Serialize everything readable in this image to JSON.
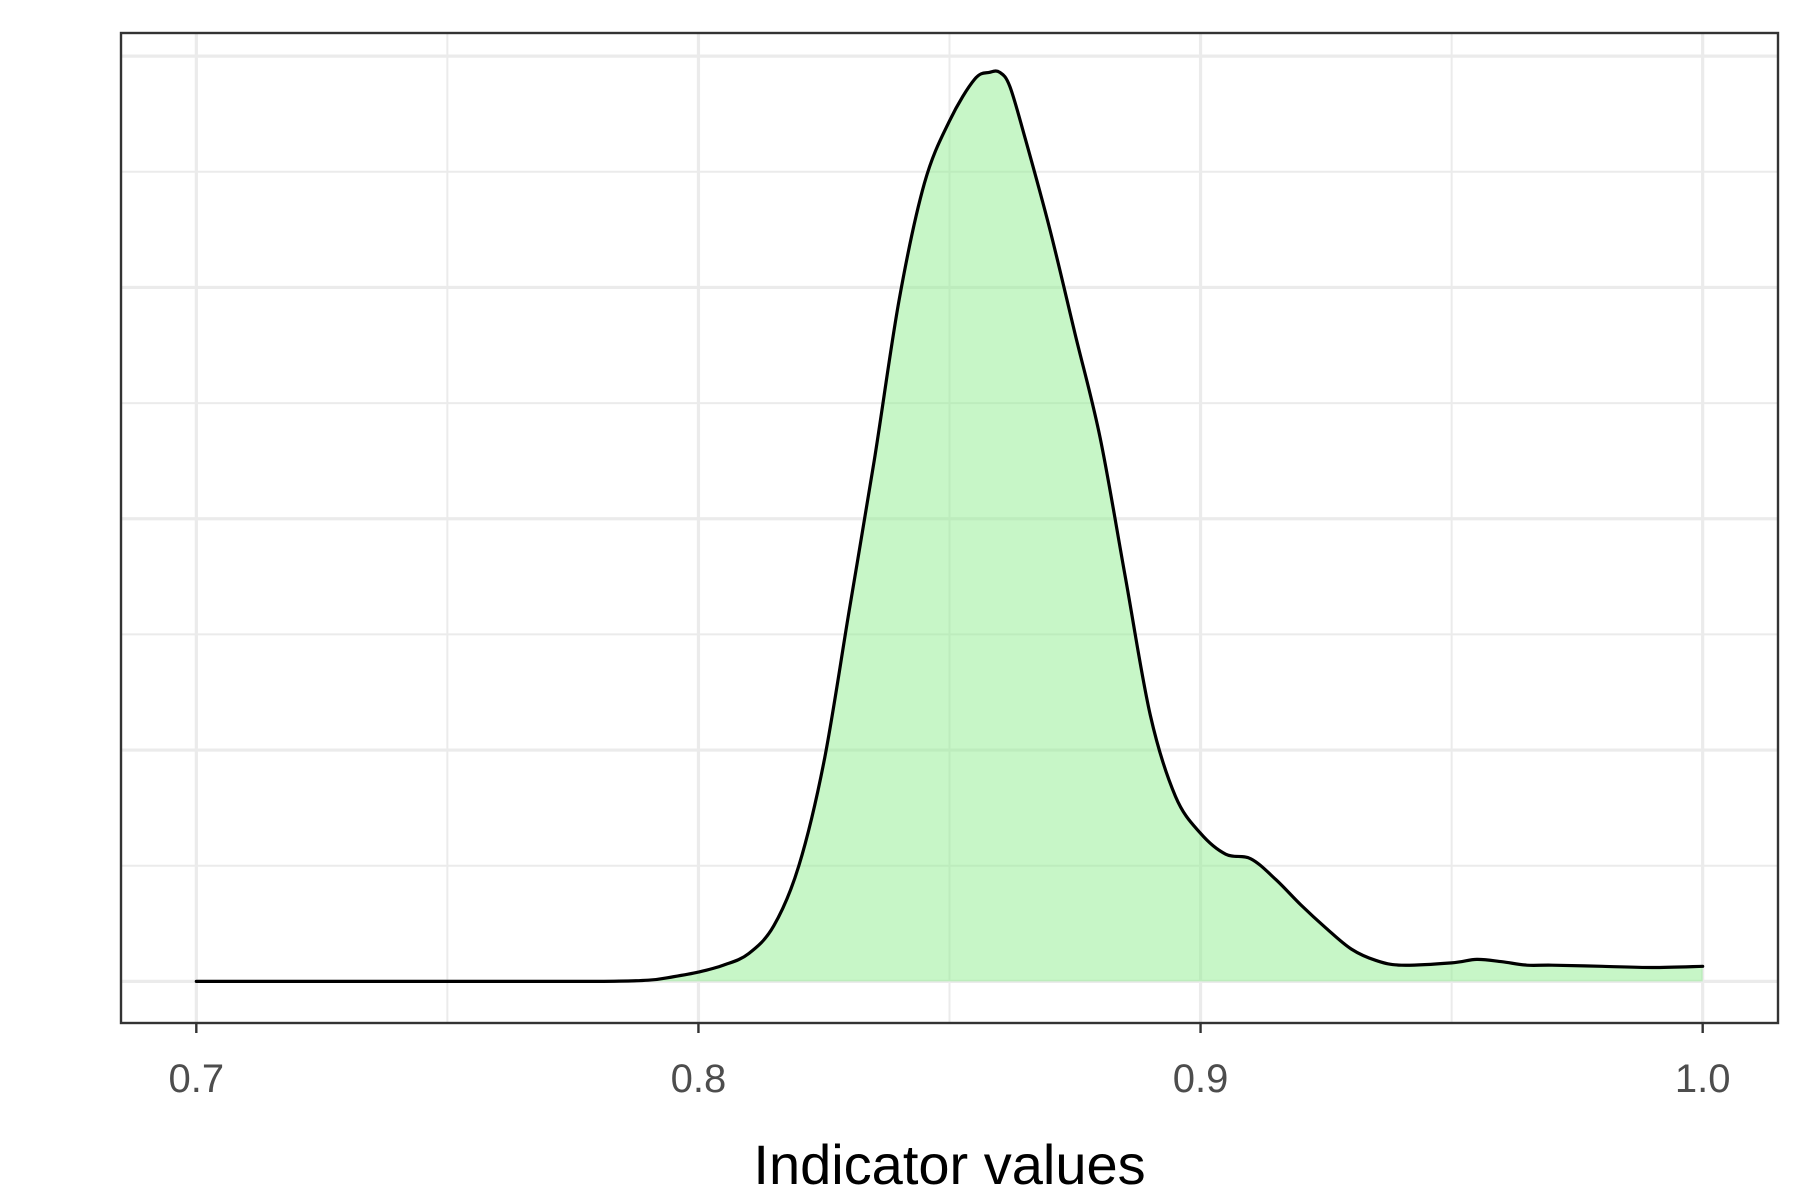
{
  "chart_data": {
    "type": "area",
    "subtype": "density",
    "title": "",
    "xlabel": "Indicator values",
    "ylabel": "",
    "xlim": [
      0.685,
      1.015
    ],
    "ylim": [
      -1.8,
      41
    ],
    "x_ticks": [
      0.7,
      0.8,
      0.9,
      1.0
    ],
    "x_tick_labels": [
      "0.7",
      "0.8",
      "0.9",
      "1.0"
    ],
    "y_tick_labels_visible": false,
    "grid": true,
    "legend": "none",
    "fill_color": "#90ee90",
    "fill_opacity": 0.5,
    "line_color": "#000000",
    "series": [
      {
        "x": [
          0.7,
          0.75,
          0.78,
          0.79,
          0.795,
          0.8,
          0.805,
          0.81,
          0.815,
          0.82,
          0.825,
          0.83,
          0.835,
          0.84,
          0.845,
          0.85,
          0.855,
          0.858,
          0.86,
          0.862,
          0.865,
          0.87,
          0.875,
          0.88,
          0.885,
          0.89,
          0.895,
          0.9,
          0.905,
          0.91,
          0.915,
          0.92,
          0.925,
          0.93,
          0.935,
          0.94,
          0.95,
          0.955,
          0.96,
          0.965,
          0.97,
          0.98,
          0.99,
          1.0
        ],
        "y": [
          0.0,
          0.0,
          0.0,
          0.05,
          0.2,
          0.4,
          0.7,
          1.2,
          2.4,
          5.0,
          9.5,
          16.0,
          22.5,
          29.5,
          34.5,
          37.2,
          39.0,
          39.3,
          39.3,
          38.7,
          36.5,
          32.5,
          28.0,
          23.5,
          17.5,
          11.5,
          8.0,
          6.4,
          5.5,
          5.3,
          4.4,
          3.3,
          2.3,
          1.4,
          0.9,
          0.7,
          0.8,
          0.95,
          0.85,
          0.7,
          0.7,
          0.65,
          0.6,
          0.65
        ]
      }
    ]
  }
}
